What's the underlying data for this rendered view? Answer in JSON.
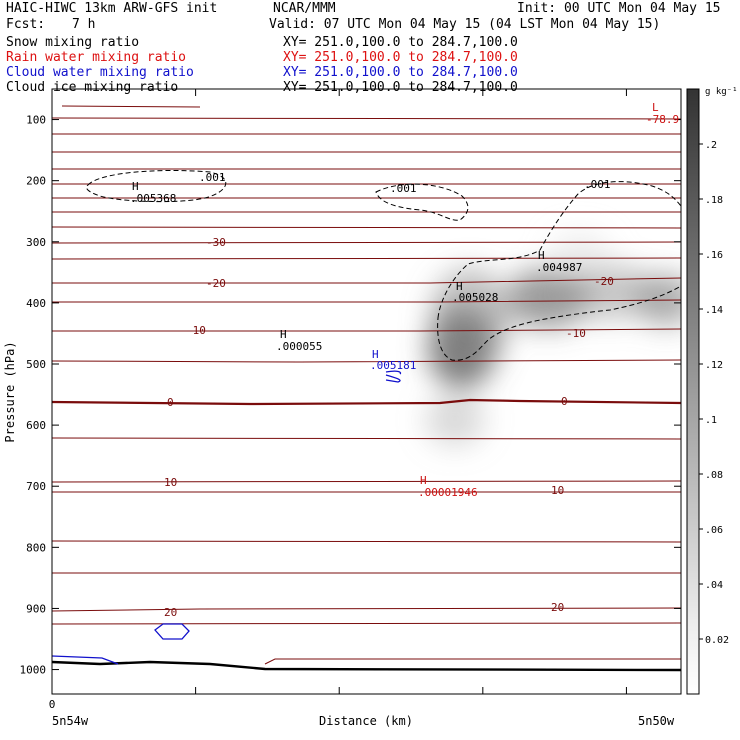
{
  "header": {
    "title_left": "HAIC-HIWC 13km ARW-GFS init",
    "org": "NCAR/MMM",
    "init": "Init: 00 UTC Mon 04 May 15",
    "fcst_label": "Fcst:",
    "fcst_value": "7 h",
    "valid": "Valid: 07 UTC Mon 04 May 15 (04 LST Mon 04 May 15)"
  },
  "fields": [
    {
      "name": "Snow mixing ratio",
      "xy": "XY= 251.0,100.0 to 284.7,100.0",
      "color": "#000000"
    },
    {
      "name": "Rain water mixing ratio",
      "xy": "XY= 251.0,100.0 to 284.7,100.0",
      "color": "#dd1111"
    },
    {
      "name": "Cloud water mixing ratio",
      "xy": "XY= 251.0,100.0 to 284.7,100.0",
      "color": "#1111cc"
    },
    {
      "name": "Cloud ice mixing ratio",
      "xy": "XY= 251.0,100.0 to 284.7,100.0",
      "color": "#000000"
    }
  ],
  "colors": {
    "temperature_contour": "#7a0c0c",
    "snow_contour": "#000000",
    "cloud_water_contour": "#1111cc",
    "rain_label": "#cc1111",
    "shading_max": "#3a3a3a"
  },
  "chart_data": {
    "type": "heatmap",
    "xlabel": "Distance (km)",
    "ylabel": "Pressure (hPa)",
    "x_left_label": "5n54w",
    "x_right_label": "5n50w",
    "x_zero_label": "0",
    "y_ticks": [
      100,
      200,
      300,
      400,
      500,
      600,
      700,
      800,
      900,
      1000
    ],
    "ylim": [
      50,
      1040
    ],
    "colorbar": {
      "unit": "g kg⁻¹",
      "ticks": [
        "0.02",
        ".04",
        ".06",
        ".08",
        ".1",
        ".12",
        ".14",
        ".16",
        ".18",
        ".2"
      ],
      "range": [
        0,
        0.22
      ]
    },
    "temperature_labels": [
      "-30",
      "-20",
      "-10",
      "0",
      "10",
      "20",
      "-20",
      "-10",
      "0",
      "10",
      "20"
    ],
    "labels": [
      {
        "text": "L",
        "color": "#cc1111"
      },
      {
        "text": "-78.9",
        "color": "#cc1111"
      },
      {
        "text": "H",
        "color": "#000000"
      },
      {
        "text": ".005368",
        "color": "#000000"
      },
      {
        "text": "H",
        "color": "#000000"
      },
      {
        "text": ".000055",
        "color": "#000000"
      },
      {
        "text": "H",
        "color": "#1111cc"
      },
      {
        "text": ".005181",
        "color": "#1111cc"
      },
      {
        "text": "H",
        "color": "#000000"
      },
      {
        "text": ".005028",
        "color": "#000000"
      },
      {
        "text": "H",
        "color": "#000000"
      },
      {
        "text": ".004987",
        "color": "#000000"
      },
      {
        "text": "H",
        "color": "#cc1111"
      },
      {
        "text": ".00001946",
        "color": "#cc1111"
      }
    ],
    "contour_labels": [
      ".001",
      ".001",
      ".001"
    ]
  }
}
